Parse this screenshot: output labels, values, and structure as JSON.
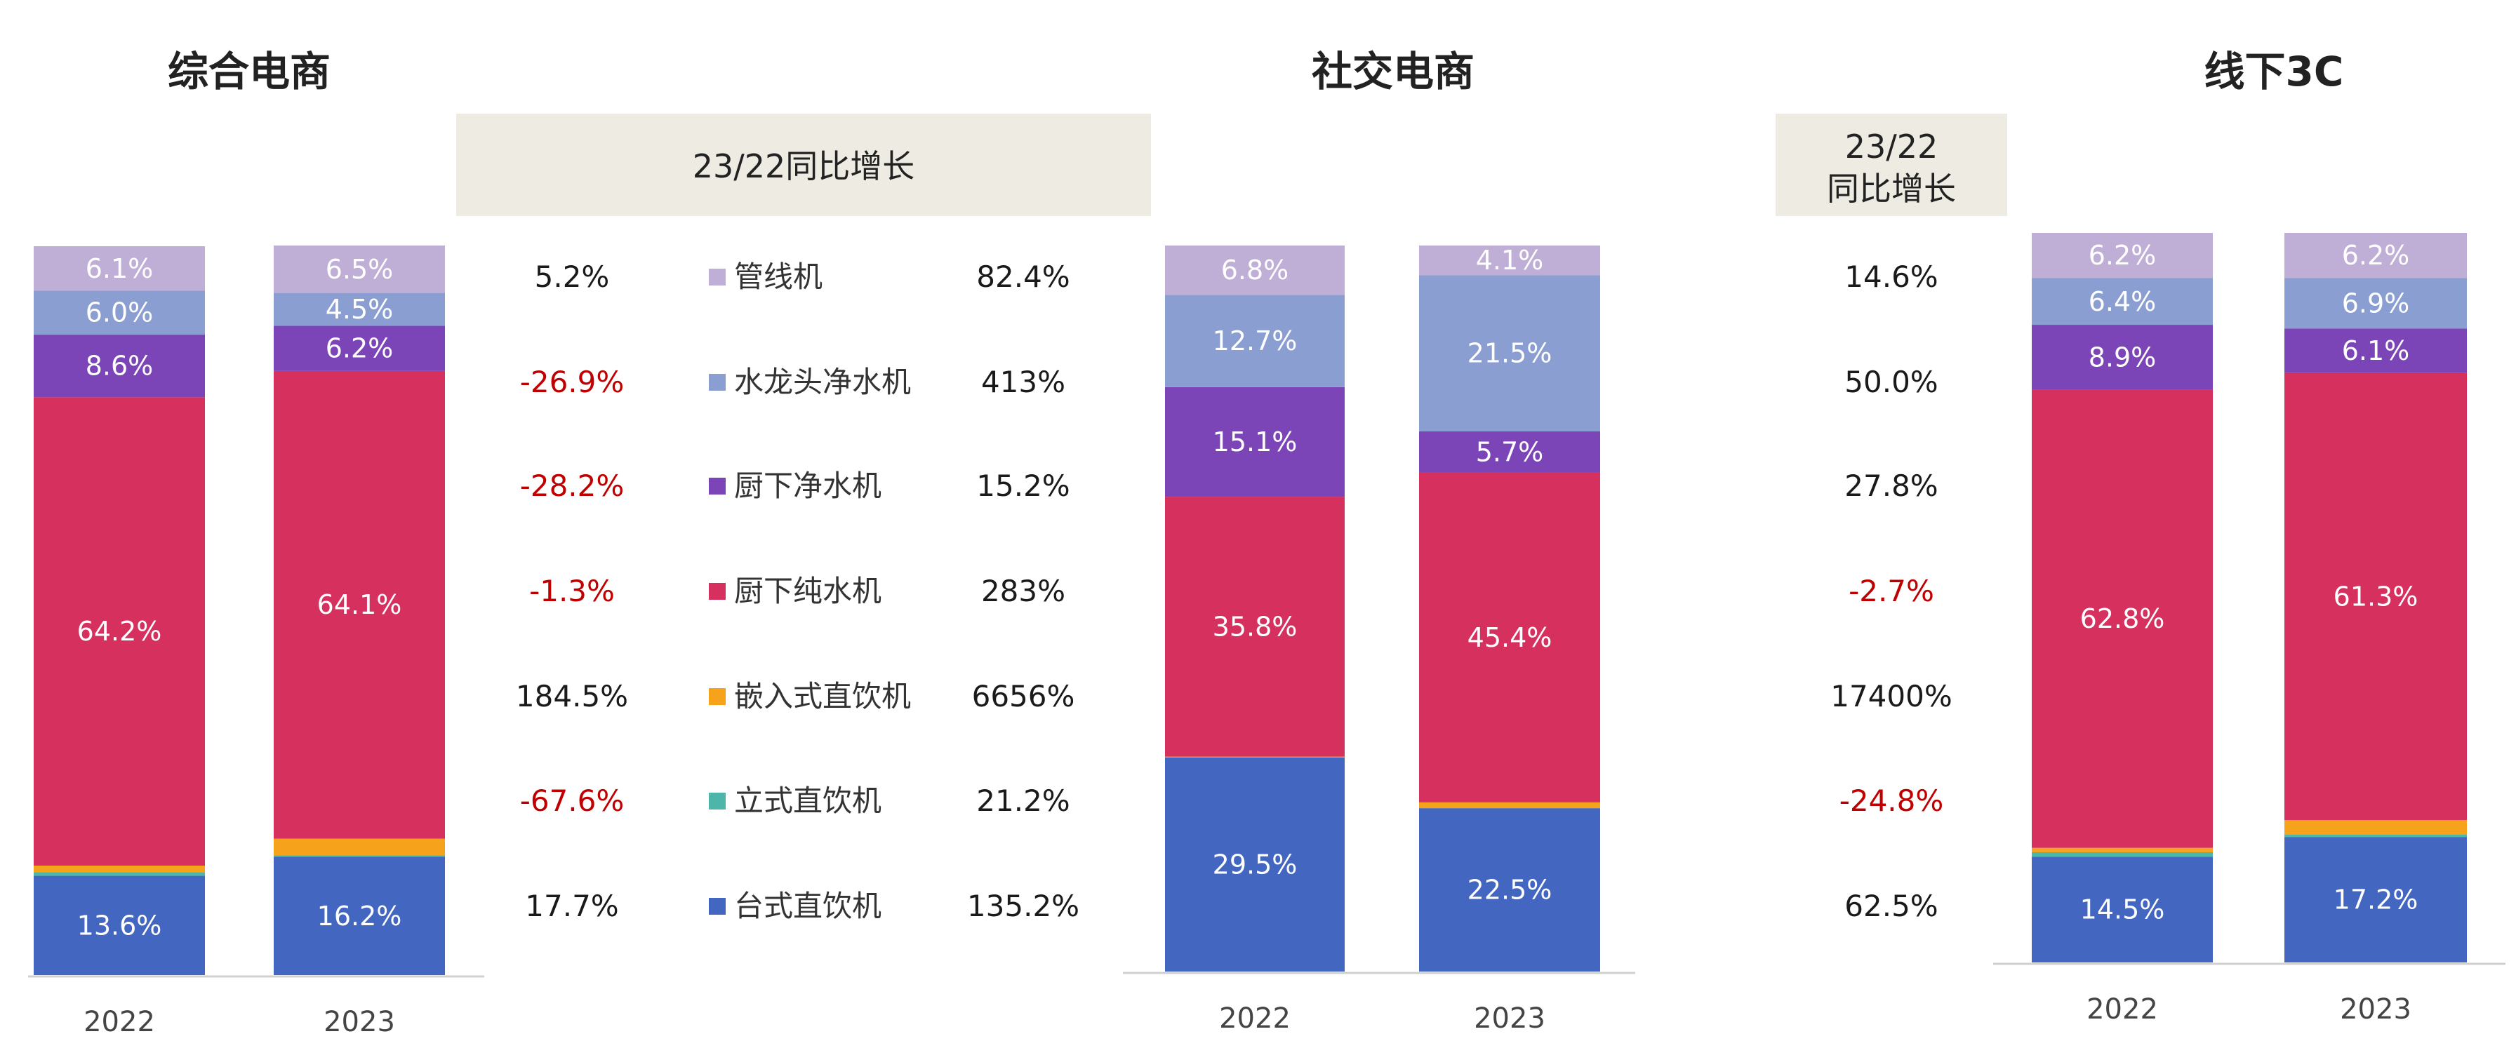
{
  "header": {
    "growth_label": "23/22同比增长",
    "growth_label_line1": "23/22",
    "growth_label_line2": "同比增长"
  },
  "colors": {
    "管线机": "#BFAED6",
    "水龙头净水机": "#8A9ED2",
    "厨下净水机": "#7B45B7",
    "厨下纯水机": "#D6305E",
    "嵌入式直饮机": "#F7A21B",
    "立式直饮机": "#4DB6A9",
    "台式直饮机": "#4367C1",
    "growth_negative": "#C00000",
    "box_bg": "#EDEBE2"
  },
  "legend": [
    {
      "name": "管线机",
      "icon": "square-marker"
    },
    {
      "name": "水龙头净水机",
      "icon": "square-marker"
    },
    {
      "name": "厨下净水机",
      "icon": "square-marker"
    },
    {
      "name": "厨下纯水机",
      "icon": "square-marker"
    },
    {
      "name": "嵌入式直饮机",
      "icon": "square-marker"
    },
    {
      "name": "立式直饮机",
      "icon": "square-marker"
    },
    {
      "name": "台式直饮机",
      "icon": "square-marker"
    }
  ],
  "chart_data": [
    {
      "type": "bar",
      "stacked": true,
      "normalized": true,
      "title": "综合电商",
      "categories": [
        "2022",
        "2023"
      ],
      "series": [
        {
          "name": "台式直饮机",
          "values": [
            13.6,
            16.2
          ],
          "labels": [
            "13.6%",
            "16.2%"
          ]
        },
        {
          "name": "立式直饮机",
          "values": [
            0.5,
            0.2
          ],
          "labels": [
            "",
            ""
          ]
        },
        {
          "name": "嵌入式直饮机",
          "values": [
            0.9,
            2.3
          ],
          "labels": [
            "",
            ""
          ]
        },
        {
          "name": "厨下纯水机",
          "values": [
            64.2,
            64.1
          ],
          "labels": [
            "64.2%",
            "64.1%"
          ]
        },
        {
          "name": "厨下净水机",
          "values": [
            8.6,
            6.2
          ],
          "labels": [
            "8.6%",
            "6.2%"
          ]
        },
        {
          "name": "水龙头净水机",
          "values": [
            6.0,
            4.5
          ],
          "labels": [
            "6.0%",
            "4.5%"
          ]
        },
        {
          "name": "管线机",
          "values": [
            6.1,
            6.5
          ],
          "labels": [
            "6.1%",
            "6.5%"
          ]
        }
      ],
      "growth_yoy": [
        "5.2%",
        "-26.9%",
        "-28.2%",
        "-1.3%",
        "184.5%",
        "-67.6%",
        "17.7%"
      ]
    },
    {
      "type": "bar",
      "stacked": true,
      "normalized": true,
      "title": "社交电商",
      "categories": [
        "2022",
        "2023"
      ],
      "series": [
        {
          "name": "台式直饮机",
          "values": [
            29.5,
            22.5
          ],
          "labels": [
            "29.5%",
            "22.5%"
          ]
        },
        {
          "name": "立式直饮机",
          "values": [
            0.0,
            0.0
          ],
          "labels": [
            "",
            ""
          ]
        },
        {
          "name": "嵌入式直饮机",
          "values": [
            0.1,
            0.8
          ],
          "labels": [
            "",
            ""
          ]
        },
        {
          "name": "厨下纯水机",
          "values": [
            35.8,
            45.4
          ],
          "labels": [
            "35.8%",
            "45.4%"
          ]
        },
        {
          "name": "厨下净水机",
          "values": [
            15.1,
            5.7
          ],
          "labels": [
            "15.1%",
            "5.7%"
          ]
        },
        {
          "name": "水龙头净水机",
          "values": [
            12.7,
            21.5
          ],
          "labels": [
            "12.7%",
            "21.5%"
          ]
        },
        {
          "name": "管线机",
          "values": [
            6.8,
            4.1
          ],
          "labels": [
            "6.8%",
            "4.1%"
          ]
        }
      ],
      "growth_yoy": [
        "82.4%",
        "413%",
        "15.2%",
        "283%",
        "6656%",
        "21.2%",
        "135.2%"
      ]
    },
    {
      "type": "bar",
      "stacked": true,
      "normalized": true,
      "title": "线下3C",
      "categories": [
        "2022",
        "2023"
      ],
      "series": [
        {
          "name": "台式直饮机",
          "values": [
            14.5,
            17.2
          ],
          "labels": [
            "14.5%",
            "17.2%"
          ]
        },
        {
          "name": "立式直饮机",
          "values": [
            0.6,
            0.3
          ],
          "labels": [
            "",
            ""
          ]
        },
        {
          "name": "嵌入式直饮机",
          "values": [
            0.6,
            2.0
          ],
          "labels": [
            "",
            ""
          ]
        },
        {
          "name": "厨下纯水机",
          "values": [
            62.8,
            61.3
          ],
          "labels": [
            "62.8%",
            "61.3%"
          ]
        },
        {
          "name": "厨下净水机",
          "values": [
            8.9,
            6.1
          ],
          "labels": [
            "8.9%",
            "6.1%"
          ]
        },
        {
          "name": "水龙头净水机",
          "values": [
            6.4,
            6.9
          ],
          "labels": [
            "6.4%",
            "6.9%"
          ]
        },
        {
          "name": "管线机",
          "values": [
            6.2,
            6.2
          ],
          "labels": [
            "6.2%",
            "6.2%"
          ]
        }
      ],
      "growth_yoy": [
        "14.6%",
        "50.0%",
        "27.8%",
        "-2.7%",
        "17400%",
        "-24.8%",
        "62.5%"
      ]
    }
  ]
}
